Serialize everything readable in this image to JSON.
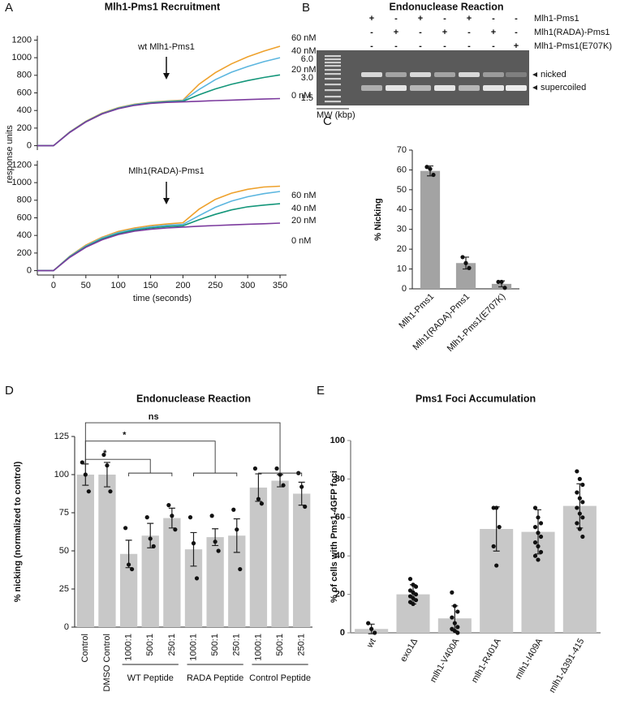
{
  "panel_labels": [
    "A",
    "B",
    "C",
    "D",
    "E"
  ],
  "gel": {
    "title": "Endonuclease Reaction",
    "rows": [
      {
        "label": "Mlh1-Pms1",
        "signs": [
          "+",
          "-",
          "+",
          "-",
          "+",
          "-",
          "-"
        ]
      },
      {
        "label": "Mlh1(RADA)-Pms1",
        "signs": [
          "-",
          "+",
          "-",
          "+",
          "-",
          "+",
          "-"
        ]
      },
      {
        "label": "Mlh1-Pms1(E707K)",
        "signs": [
          "-",
          "-",
          "-",
          "-",
          "-",
          "-",
          "+"
        ]
      }
    ],
    "mw_labels": [
      "6.0",
      "3.0",
      "1.5"
    ],
    "mw_axis_label": "MW (kbp)",
    "band_labels": [
      "nicked",
      "supercoiled"
    ]
  },
  "chart_data": [
    {
      "type": "line",
      "title": "Mlh1-Pms1 Recruitment",
      "y_label": "response units",
      "annotation": "wt Mlh1-Pms1",
      "x": [
        -25,
        0,
        25,
        50,
        75,
        100,
        125,
        150,
        175,
        200,
        225,
        250,
        275,
        300,
        325,
        350
      ],
      "xlim": [
        -25,
        360
      ],
      "ylim": [
        -50,
        1250
      ],
      "yticks": [
        0,
        200,
        400,
        600,
        800,
        1000,
        1200
      ],
      "series": [
        {
          "name": "60 nM",
          "color": "#eea12c",
          "values": [
            0,
            0,
            157,
            278,
            370,
            432,
            472,
            495,
            508,
            518,
            700,
            830,
            930,
            1010,
            1075,
            1130
          ]
        },
        {
          "name": "40 nM",
          "color": "#5cb6df",
          "values": [
            0,
            0,
            155,
            275,
            366,
            428,
            467,
            490,
            503,
            512,
            640,
            750,
            835,
            900,
            955,
            1000
          ]
        },
        {
          "name": "20 nM",
          "color": "#14967a",
          "values": [
            0,
            0,
            152,
            272,
            362,
            423,
            462,
            485,
            498,
            505,
            580,
            645,
            698,
            740,
            775,
            805
          ]
        },
        {
          "name": "0 nM",
          "color": "#7c3b9e",
          "values": [
            0,
            0,
            150,
            270,
            360,
            420,
            458,
            480,
            492,
            498,
            505,
            512,
            518,
            524,
            530,
            535
          ]
        }
      ]
    },
    {
      "type": "line",
      "x_label": "time (seconds)",
      "annotation": "Mlh1(RADA)-Pms1",
      "x": [
        -25,
        0,
        25,
        50,
        75,
        100,
        125,
        150,
        175,
        200,
        225,
        250,
        275,
        300,
        325,
        350
      ],
      "xlim": [
        -25,
        360
      ],
      "ylim": [
        -50,
        1250
      ],
      "yticks": [
        0,
        200,
        400,
        600,
        800,
        1000,
        1200
      ],
      "xticks": [
        0,
        50,
        100,
        150,
        200,
        250,
        300,
        350
      ],
      "series": [
        {
          "name": "60 nM",
          "color": "#eea12c",
          "values": [
            0,
            0,
            165,
            290,
            380,
            445,
            485,
            512,
            530,
            545,
            700,
            810,
            880,
            925,
            950,
            960
          ]
        },
        {
          "name": "40 nM",
          "color": "#5cb6df",
          "values": [
            0,
            0,
            160,
            280,
            370,
            432,
            472,
            498,
            515,
            525,
            625,
            720,
            790,
            840,
            875,
            900
          ]
        },
        {
          "name": "20 nM",
          "color": "#14967a",
          "values": [
            0,
            0,
            155,
            272,
            360,
            420,
            460,
            485,
            500,
            510,
            580,
            640,
            690,
            725,
            745,
            760
          ]
        },
        {
          "name": "0 nM",
          "color": "#7c3b9e",
          "values": [
            0,
            0,
            150,
            265,
            350,
            410,
            448,
            470,
            485,
            495,
            505,
            512,
            520,
            527,
            533,
            540
          ]
        }
      ]
    },
    {
      "type": "bar",
      "y_label": "% Nicking",
      "color": "#a3a3a3",
      "categories": [
        "Mlh1-Pms1",
        "Mlh1(RADA)-Pms1",
        "Mlh1-Pms1(E707K)"
      ],
      "values": [
        59.5,
        13,
        2.5
      ],
      "errors": [
        2.5,
        3,
        1.5
      ],
      "points": [
        [
          61.5,
          60.5,
          57.5
        ],
        [
          16,
          13,
          10.5
        ],
        [
          3.5,
          3.5,
          0.5
        ]
      ],
      "ylim": [
        0,
        70
      ],
      "yticks": [
        0,
        10,
        20,
        30,
        40,
        50,
        60,
        70
      ]
    },
    {
      "type": "bar",
      "title": "Endonuclease Reaction",
      "y_label": "% nicking (normalized to control)",
      "color": "#c8c8c8",
      "categories": [
        "Control",
        "DMSO Control",
        "1000:1",
        "500:1",
        "250:1",
        "1000:1",
        "500:1",
        "250:1",
        "1000:1",
        "500:1",
        "250:1"
      ],
      "groups": [
        "WT Peptide",
        "RADA Peptide",
        "Control Peptide"
      ],
      "significance": [
        "*",
        "*",
        "ns"
      ],
      "values": [
        100,
        100,
        48,
        60,
        71.5,
        51,
        59,
        60,
        91.5,
        96,
        87.5
      ],
      "errors": [
        7,
        8,
        9,
        8,
        6.5,
        11,
        5.5,
        11,
        9,
        4,
        7.5
      ],
      "points": [
        [
          108,
          100,
          89
        ],
        [
          113,
          106,
          89
        ],
        [
          65,
          41,
          38
        ],
        [
          72,
          58,
          53
        ],
        [
          80,
          73,
          64
        ],
        [
          72,
          55,
          32
        ],
        [
          73,
          56,
          50
        ],
        [
          77,
          64,
          38
        ],
        [
          104,
          84,
          81
        ],
        [
          104,
          100,
          93
        ],
        [
          101,
          92,
          79
        ]
      ],
      "ylim": [
        0,
        125
      ],
      "yticks": [
        0,
        25,
        50,
        75,
        100,
        125
      ]
    },
    {
      "type": "bar",
      "title": "Pms1 Foci Accumulation",
      "y_label": "% of cells with Pms1-4GFP foci",
      "color": "#c8c8c8",
      "categories": [
        "wt",
        "exo1Δ",
        "mlh1-V400A",
        "mlh1-R401A",
        "mlh1-I409A",
        "mlh1-Δ391-415"
      ],
      "values": [
        2,
        20,
        7.5,
        54,
        52.5,
        66
      ],
      "errors": [
        2.5,
        5,
        6.5,
        11.5,
        11.5,
        11.5
      ],
      "points": [
        [
          5,
          2,
          0
        ],
        [
          28,
          25,
          24,
          22,
          21,
          20,
          19,
          18,
          17,
          16,
          15
        ],
        [
          21,
          14,
          11,
          8,
          5,
          3,
          2,
          1,
          0
        ],
        [
          65,
          65,
          55,
          45,
          35
        ],
        [
          65,
          60,
          57,
          55,
          52,
          50,
          47,
          45,
          42,
          40,
          38
        ],
        [
          84,
          80,
          77,
          73,
          70,
          68,
          65,
          62,
          60,
          57,
          54,
          50
        ]
      ],
      "ylim": [
        0,
        100
      ],
      "yticks": [
        0,
        20,
        40,
        60,
        80,
        100
      ]
    }
  ]
}
